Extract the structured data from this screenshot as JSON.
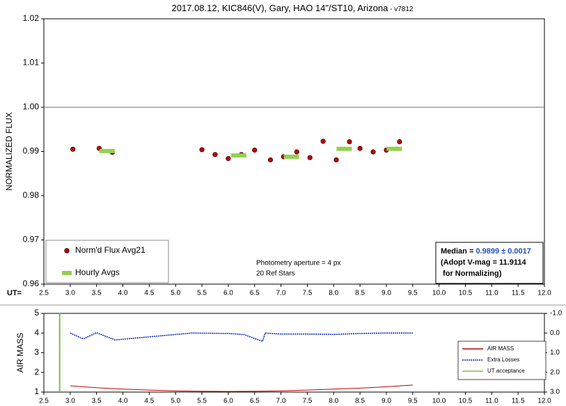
{
  "chart_data": [
    {
      "type": "scatter",
      "title": "2017.08.12, KIC846(V), Gary, HAO 14\"/ST10, Arizona",
      "subtitle": " - v7812",
      "ylabel": "NORMALIZED FLUX",
      "xlabel": "UT=",
      "xlim": [
        2.5,
        12.0
      ],
      "xticks": [
        2.5,
        {
          "value": 3,
          "label": "3.0"
        },
        3.5,
        {
          "value": 4,
          "label": "4.0"
        },
        4.5,
        {
          "value": 5,
          "label": "5.0"
        },
        5.5,
        {
          "value": 6,
          "label": "6.0"
        },
        6.5,
        {
          "value": 7,
          "label": "7.0"
        },
        7.5,
        {
          "value": 8,
          "label": "8.0"
        },
        8.5,
        {
          "value": 9,
          "label": "9.0"
        },
        9.5,
        {
          "value": 10,
          "label": "10.0"
        },
        10.5,
        {
          "value": 11,
          "label": "11.0"
        },
        11.5,
        {
          "value": 12,
          "label": "12.0"
        }
      ],
      "ylim": [
        0.96,
        1.02
      ],
      "yticks": [
        0.96,
        0.97,
        0.98,
        0.99,
        {
          "value": 1,
          "label": "1.00"
        },
        1.01,
        1.02
      ],
      "reference_line": 1,
      "legend": "lower left",
      "series": [
        {
          "name": "Norm'd Flux Avg21",
          "color": "#c00000",
          "marker": "dot",
          "x": [
            3.05,
            3.55,
            3.8,
            5.5,
            5.75,
            6.0,
            6.25,
            6.5,
            6.8,
            7.05,
            7.3,
            7.55,
            7.8,
            8.05,
            8.3,
            8.5,
            8.75,
            9.0,
            9.25
          ],
          "values": [
            0.9905,
            0.9907,
            0.9898,
            0.9904,
            0.9893,
            0.9884,
            0.9893,
            0.9903,
            0.9881,
            0.9888,
            0.9899,
            0.9886,
            0.9923,
            0.9881,
            0.9922,
            0.9907,
            0.9899,
            0.9903,
            0.9922
          ]
        },
        {
          "name": "Hourly Avgs",
          "color": "#92d050",
          "marker": "dash",
          "x": [
            3.7,
            6.2,
            7.2,
            8.2,
            9.15
          ],
          "values": [
            0.9901,
            0.9891,
            0.9888,
            0.9906,
            0.9906
          ]
        }
      ],
      "annotations": [
        "Photometry aperture = 4 px",
        "20 Ref Stars"
      ],
      "info_box": {
        "median_label": "Median = ",
        "median": "0.9899 ± 0.0017",
        "lines": [
          "(Adopt V-mag = 11.9114",
          " for Normalizing)"
        ]
      }
    },
    {
      "type": "line",
      "ylabel": "AIR MASS",
      "xlim": [
        2.5,
        12.0
      ],
      "xticks": [
        2.5,
        {
          "value": 3,
          "label": "3.0"
        },
        3.5,
        {
          "value": 4,
          "label": "4.0"
        },
        4.5,
        {
          "value": 5,
          "label": "5.0"
        },
        5.5,
        {
          "value": 6,
          "label": "6.0"
        },
        6.5,
        {
          "value": 7,
          "label": "7.0"
        },
        7.5,
        {
          "value": 8,
          "label": "8.0"
        },
        8.5,
        {
          "value": 9,
          "label": "9.0"
        },
        9.5,
        {
          "value": 10,
          "label": "10.0"
        },
        10.5,
        {
          "value": 11,
          "label": "11.0"
        },
        11.5,
        {
          "value": 12,
          "label": "12.0"
        }
      ],
      "ylim": [
        1,
        5
      ],
      "yticks": [
        1,
        2,
        3,
        4,
        5
      ],
      "y2lim": [
        3,
        -1
      ],
      "y2ticks": [
        {
          "value": -1,
          "label": "-1.0"
        },
        {
          "value": 0,
          "label": "0.0"
        },
        {
          "value": 1,
          "label": "1.0"
        },
        {
          "value": 2,
          "label": "2.0"
        },
        {
          "value": 3,
          "label": "3.0"
        }
      ],
      "legend": "lower right",
      "series": [
        {
          "name": "AIR MASS",
          "color": "#c00000",
          "x": [
            3.0,
            3.5,
            4.0,
            4.5,
            5.0,
            5.5,
            6.0,
            6.5,
            7.0,
            7.5,
            8.0,
            8.5,
            9.0,
            9.5
          ],
          "values": [
            1.32,
            1.22,
            1.15,
            1.1,
            1.06,
            1.04,
            1.03,
            1.04,
            1.06,
            1.1,
            1.15,
            1.2,
            1.27,
            1.36
          ]
        },
        {
          "name": "Extra Losses",
          "color": "#0020c0",
          "axis": "y2",
          "dashed": true,
          "x": [
            3.0,
            3.25,
            3.5,
            3.85,
            5.3,
            6.0,
            6.3,
            6.65,
            6.7,
            7.0,
            7.5,
            8.0,
            8.5,
            9.0,
            9.5
          ],
          "values": [
            0.0,
            0.3,
            -0.02,
            0.35,
            0.0,
            0.02,
            0.08,
            0.42,
            0.0,
            0.05,
            0.05,
            0.07,
            0.02,
            0.0,
            0.0
          ]
        }
      ],
      "marker_lines": [
        {
          "name": "UT acceptance",
          "color": "#7ac143",
          "x": 2.8
        }
      ]
    }
  ]
}
